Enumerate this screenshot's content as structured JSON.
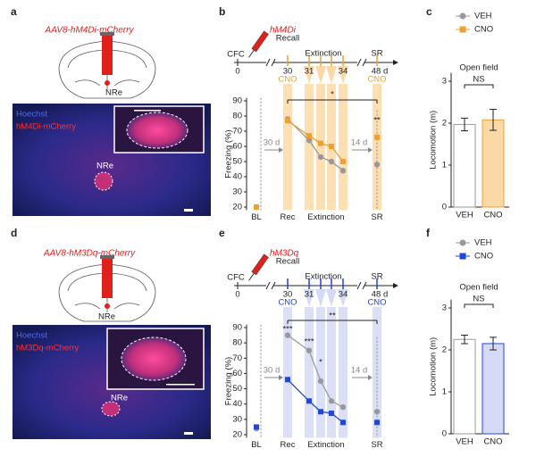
{
  "panels": {
    "a": {
      "letter": "a",
      "title": "AAV8-hM4Di-mCherry",
      "target": "NRe",
      "stain1": "Hoechst",
      "stain2": "hM4Di-mCherry",
      "region": "NRe"
    },
    "d": {
      "letter": "d",
      "title": "AAV8-hM3Dq-mCherry",
      "target": "NRe",
      "stain1": "Hoechst",
      "stain2": "hM3Dq-mCherry",
      "region": "NRe"
    }
  },
  "chart_data": [
    {
      "type": "line",
      "letter": "b",
      "ylabel": "Freezing (%)",
      "categories": [
        "BL",
        "Rec",
        null,
        null,
        null,
        null,
        "SR"
      ],
      "group_label": "Extinction",
      "series": [
        {
          "name": "VEH",
          "color": "#999999",
          "values": [
            20,
            78,
            64,
            53,
            50,
            44,
            48
          ]
        },
        {
          "name": "CNO",
          "color": "#f0a030",
          "values": [
            20,
            77,
            67,
            62,
            60,
            50,
            66
          ]
        }
      ],
      "ylim": [
        18,
        92
      ],
      "yticks": [
        20,
        30,
        40,
        50,
        60,
        70,
        80,
        90
      ],
      "timeline": {
        "drug": "hM4Di",
        "cfc": "CFC",
        "recall": "Recall",
        "extinction": "Extinction",
        "sr": "SR",
        "days": [
          0,
          30,
          31,
          34,
          {
            "value": 48,
            "label": "48 d"
          }
        ],
        "drug_labels": [
          "CNO",
          "CNO"
        ],
        "color": "#f0a030",
        "shade": "#fbd9a6"
      },
      "annotations": [
        "30 d",
        "14 d",
        "*",
        "**"
      ]
    },
    {
      "type": "bar",
      "letter": "c",
      "ylabel": "Locomotion (m)",
      "title": "Open field",
      "annotations": [
        "NS"
      ],
      "categories": [
        "VEH",
        "CNO"
      ],
      "values": [
        1.97,
        2.08
      ],
      "errors": [
        0.15,
        0.25
      ],
      "colors": [
        "#999999",
        "#f0a030"
      ],
      "fills": [
        "#ffffff",
        "#fbd9a6"
      ],
      "markers": [
        "circle",
        "square"
      ],
      "ylim": [
        0,
        3.2
      ],
      "yticks": [
        0,
        1,
        2,
        3
      ]
    },
    {
      "type": "line",
      "letter": "e",
      "ylabel": "Freezing (%)",
      "categories": [
        "BL",
        "Rec",
        null,
        null,
        null,
        null,
        "SR"
      ],
      "group_label": "Extinction",
      "series": [
        {
          "name": "VEH",
          "color": "#999999",
          "values": [
            24,
            85,
            75,
            55,
            42,
            38,
            35
          ]
        },
        {
          "name": "CNO",
          "color": "#1f47d8",
          "values": [
            25,
            56,
            42,
            35,
            34,
            28,
            28
          ]
        }
      ],
      "ylim": [
        18,
        92
      ],
      "yticks": [
        20,
        30,
        40,
        50,
        60,
        70,
        80,
        90
      ],
      "timeline": {
        "drug": "hM3Dq",
        "cfc": "CFC",
        "recall": "Recall",
        "extinction": "Extinction",
        "sr": "SR",
        "days": [
          0,
          30,
          31,
          34,
          {
            "value": 48,
            "label": "48 d"
          }
        ],
        "drug_labels": [
          "CNO",
          "CNO"
        ],
        "color": "#1f47d8",
        "shade": "#d5dbf6"
      },
      "annotations": [
        "30 d",
        "14 d",
        "***",
        "***",
        "*",
        "**"
      ]
    },
    {
      "type": "bar",
      "letter": "f",
      "ylabel": "Locomotion (m)",
      "title": "Open field",
      "annotations": [
        "NS"
      ],
      "categories": [
        "VEH",
        "CNO"
      ],
      "values": [
        2.25,
        2.15
      ],
      "errors": [
        0.1,
        0.15
      ],
      "colors": [
        "#999999",
        "#1f47d8"
      ],
      "fills": [
        "#ffffff",
        "#d5dbf6"
      ],
      "markers": [
        "circle",
        "square"
      ],
      "ylim": [
        0,
        3.2
      ],
      "yticks": [
        0,
        1,
        2,
        3
      ]
    }
  ]
}
